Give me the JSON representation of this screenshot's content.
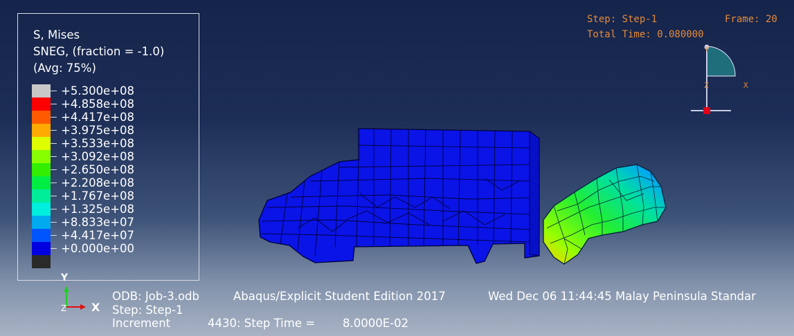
{
  "legend": {
    "title_lines": [
      "S, Mises",
      "SNEG, (fraction = -1.0)",
      "(Avg: 75%)"
    ],
    "levels": [
      {
        "label": "+5.300e+08",
        "color": "#c8c8c8"
      },
      {
        "label": "+4.858e+08",
        "color": "#ff0000"
      },
      {
        "label": "+4.417e+08",
        "color": "#ff5a00"
      },
      {
        "label": "+3.975e+08",
        "color": "#ffaa00"
      },
      {
        "label": "+3.533e+08",
        "color": "#ddff00"
      },
      {
        "label": "+3.092e+08",
        "color": "#88ff00"
      },
      {
        "label": "+2.650e+08",
        "color": "#33ee00"
      },
      {
        "label": "+2.208e+08",
        "color": "#00ee44"
      },
      {
        "label": "+1.767e+08",
        "color": "#00ee99"
      },
      {
        "label": "+1.325e+08",
        "color": "#00eedd"
      },
      {
        "label": "+8.833e+07",
        "color": "#00aaee"
      },
      {
        "label": "+4.417e+07",
        "color": "#0055ff"
      },
      {
        "label": "+0.000e+00",
        "color": "#0000e0"
      }
    ],
    "bottom_swatch_color": "#2a2a2a"
  },
  "step_info": {
    "step": "Step: Step-1",
    "frame": "Frame: 20",
    "total_time": "Total Time: 0.080000"
  },
  "view_triad": {
    "y_label": "Y",
    "x_label": "X",
    "z_label": "Z"
  },
  "triad": {
    "y_label": "Y",
    "x_label": "X",
    "z_label": "Z"
  },
  "info": {
    "odb": "ODB: Job-3.odb",
    "edition": "Abaqus/Explicit Student Edition 2017",
    "date": "Wed Dec 06 11:44:45 Malay Peninsula Standar",
    "step_line": "Step: Step-1",
    "increment_label": "Increment",
    "increment_value": "4430: Step Time =",
    "step_time": "8.0000E-02"
  },
  "colors": {
    "truck": "#0a14e6",
    "mesh_line": "#00003a",
    "step_text": "#e68a3a"
  }
}
